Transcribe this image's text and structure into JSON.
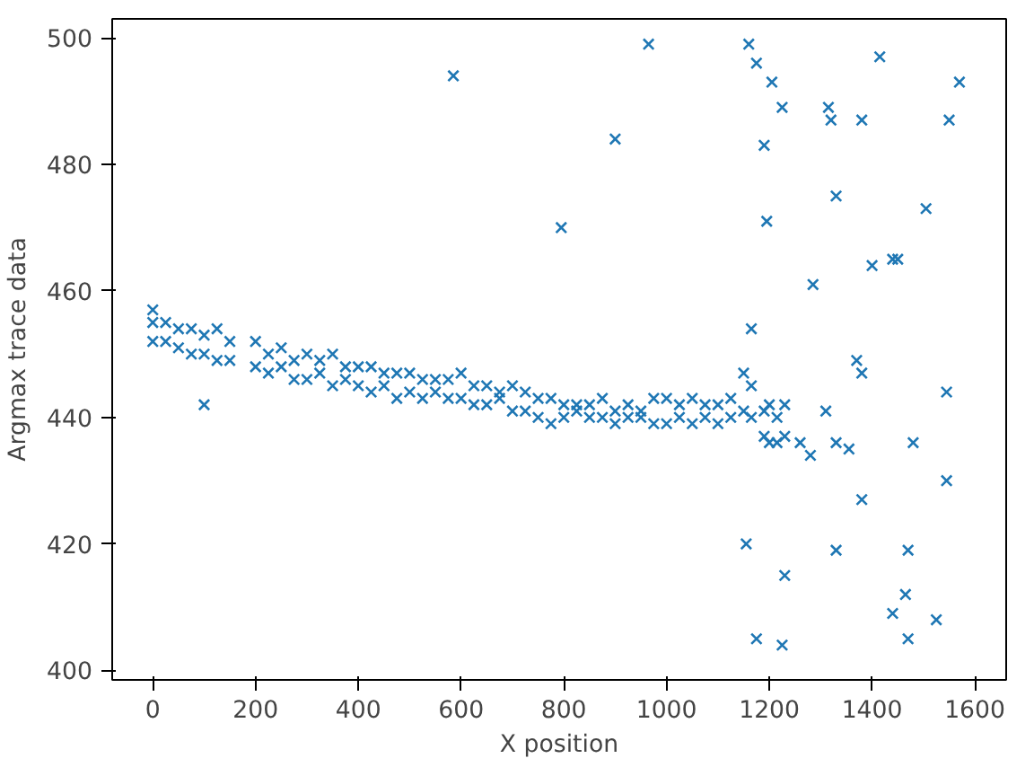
{
  "chart_data": {
    "type": "scatter",
    "xlabel": "X position",
    "ylabel": "Argmax trace data",
    "marker": "cross",
    "grid": false,
    "xlim": [
      -79,
      1661
    ],
    "ylim": [
      398.5,
      503
    ],
    "xticks": [
      0,
      200,
      400,
      600,
      800,
      1000,
      1200,
      1400,
      1600
    ],
    "yticks": [
      400,
      420,
      440,
      460,
      480,
      500
    ],
    "series": [
      {
        "color": "#1f77b4",
        "x": [
          0,
          0,
          0,
          25,
          25,
          50,
          50,
          75,
          75,
          100,
          100,
          125,
          125,
          150,
          150,
          200,
          200,
          225,
          225,
          250,
          250,
          275,
          275,
          300,
          300,
          325,
          325,
          350,
          350,
          375,
          375,
          400,
          400,
          425,
          425,
          450,
          450,
          475,
          475,
          500,
          500,
          525,
          525,
          550,
          550,
          575,
          575,
          600,
          600,
          625,
          625,
          650,
          650,
          675,
          675,
          700,
          700,
          725,
          725,
          750,
          750,
          775,
          775,
          800,
          800,
          825,
          825,
          850,
          850,
          875,
          875,
          900,
          900,
          925,
          925,
          950,
          950,
          975,
          975,
          1000,
          1000,
          1025,
          1025,
          1050,
          1050,
          1075,
          1075,
          1100,
          1100,
          1125,
          1125,
          1150,
          1150,
          1165,
          1165,
          1190,
          1190,
          1200,
          1200,
          1215,
          1215,
          1230,
          1230,
          585,
          795,
          900,
          965,
          1160,
          1175,
          1190,
          1195,
          1205,
          1225,
          1285,
          1315,
          1320,
          1330,
          1380,
          1400,
          1415,
          1440,
          1450,
          1370,
          1380,
          1505,
          1550,
          1570,
          1545,
          1545,
          1480,
          1380,
          1470,
          1330,
          1155,
          1230,
          1175,
          1225,
          1440,
          1465,
          1470,
          1525,
          1310,
          1330,
          1355,
          1280,
          1260,
          1165,
          100
        ],
        "values": [
          457,
          452,
          455,
          455,
          452,
          454,
          451,
          454,
          450,
          453,
          450,
          454,
          449,
          452,
          449,
          452,
          448,
          450,
          447,
          451,
          448,
          449,
          446,
          450,
          446,
          449,
          447,
          450,
          445,
          448,
          446,
          448,
          445,
          448,
          444,
          447,
          445,
          447,
          443,
          447,
          444,
          446,
          443,
          446,
          444,
          446,
          443,
          447,
          443,
          445,
          442,
          445,
          442,
          444,
          443,
          445,
          441,
          444,
          441,
          443,
          440,
          443,
          439,
          442,
          440,
          442,
          441,
          442,
          440,
          443,
          440,
          441,
          439,
          442,
          440,
          441,
          440,
          443,
          439,
          443,
          439,
          442,
          440,
          443,
          439,
          442,
          440,
          442,
          439,
          443,
          440,
          447,
          441,
          445,
          440,
          441,
          437,
          442,
          436,
          440,
          436,
          442,
          437,
          494,
          470,
          484,
          499,
          499,
          496,
          483,
          471,
          493,
          489,
          461,
          489,
          487,
          475,
          487,
          464,
          497,
          465,
          465,
          449,
          447,
          473,
          487,
          493,
          444,
          430,
          436,
          427,
          419,
          419,
          420,
          415,
          405,
          404,
          409,
          412,
          405,
          408,
          441,
          436,
          435,
          434,
          436,
          454,
          442
        ]
      }
    ]
  }
}
